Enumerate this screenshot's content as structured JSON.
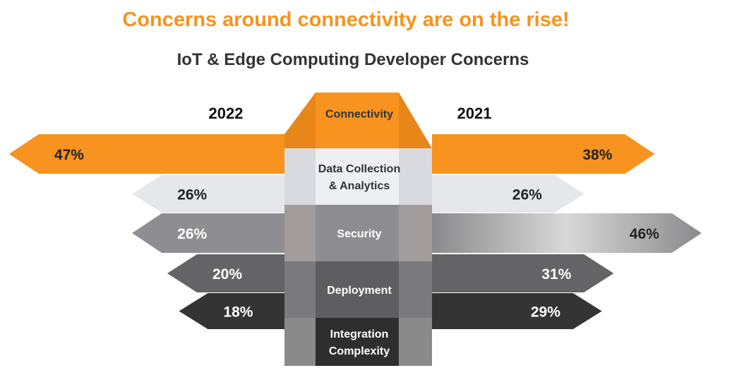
{
  "headline": "Concerns around connectivity are on the rise!",
  "chart_data": {
    "type": "bar",
    "title": "IoT & Edge Computing Developer Concerns",
    "categories": [
      "Connectivity",
      "Data Collection & Analytics",
      "Security",
      "Deployment",
      "Integration Complexity"
    ],
    "category_lines": [
      [
        "Connectivity"
      ],
      [
        "Data Collection",
        "& Analytics"
      ],
      [
        "Security"
      ],
      [
        "Deployment"
      ],
      [
        "Integration",
        "Complexity"
      ]
    ],
    "series": [
      {
        "name": "2022",
        "side": "left",
        "values": [
          47,
          26,
          26,
          20,
          18
        ],
        "labels": [
          "47%",
          "26%",
          "26%",
          "20%",
          "18%"
        ]
      },
      {
        "name": "2021",
        "side": "right",
        "values": [
          38,
          26,
          46,
          31,
          29
        ],
        "labels": [
          "38%",
          "26%",
          "46%",
          "31%",
          "29%"
        ]
      }
    ],
    "colors": [
      "#f7931e",
      "#e6e7eb",
      "#8e8e92",
      "#646466",
      "#343434"
    ],
    "label_colors": [
      "#222222",
      "#222222",
      "#ffffff",
      "#ffffff",
      "#ffffff"
    ],
    "right_label_colors": [
      "#222222",
      "#222222",
      "#222222",
      "#ffffff",
      "#ffffff"
    ],
    "ylabel": "",
    "xlabel": ""
  }
}
